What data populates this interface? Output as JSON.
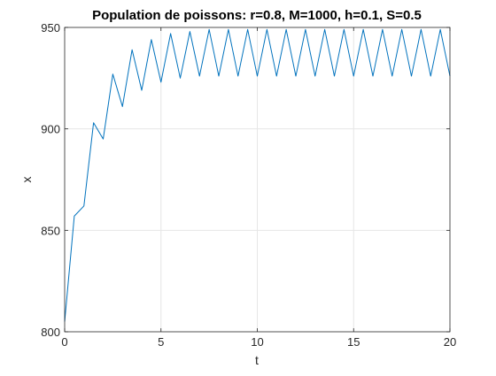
{
  "chart_data": {
    "type": "line",
    "title": "Population de poissons: r=0.8, M=1000, h=0.1, S=0.5",
    "xlabel": "t",
    "ylabel": "x",
    "xlim": [
      0,
      20
    ],
    "ylim": [
      800,
      950
    ],
    "xticks": [
      0,
      5,
      10,
      15,
      20
    ],
    "yticks": [
      800,
      850,
      900,
      950
    ],
    "grid": true,
    "colors": {
      "line": "#0072BD",
      "grid": "#e6e6e6",
      "axis": "#262626"
    },
    "series": [
      {
        "x": [
          0,
          0.5,
          1,
          1.5,
          2,
          2.5,
          3,
          3.5,
          4,
          4.5,
          5,
          5.5,
          6,
          6.5,
          7,
          7.5,
          8,
          8.5,
          9,
          9.5,
          10,
          10.5,
          11,
          11.5,
          12,
          12.5,
          13,
          13.5,
          14,
          14.5,
          15,
          15.5,
          16,
          16.5,
          17,
          17.5,
          18,
          18.5,
          19,
          19.5,
          20
        ],
        "values": [
          805,
          857,
          862,
          903,
          895,
          927,
          911,
          939,
          919,
          944,
          923,
          947,
          925,
          948,
          926,
          949,
          926,
          949,
          926,
          949,
          926,
          949,
          926,
          949,
          926,
          949,
          926,
          949,
          926,
          949,
          926,
          949,
          926,
          949,
          926,
          949,
          926,
          949,
          926,
          949,
          926
        ]
      }
    ]
  }
}
